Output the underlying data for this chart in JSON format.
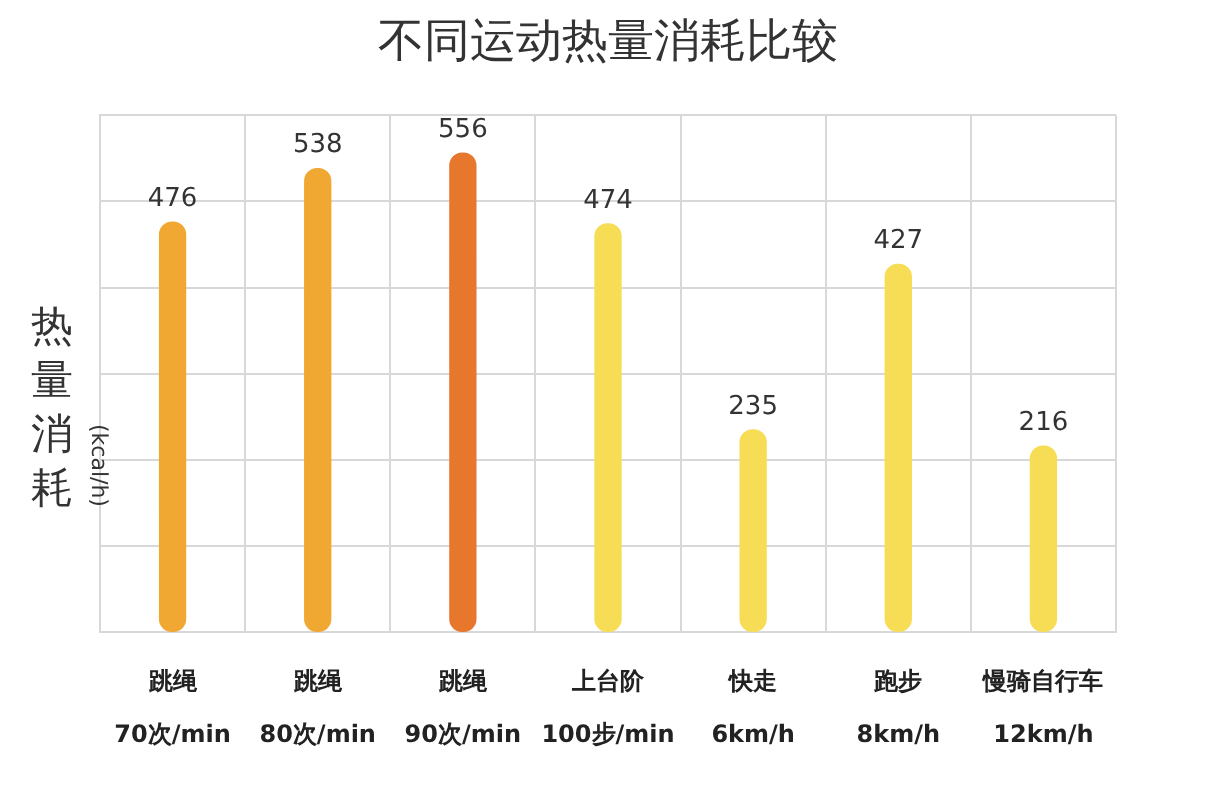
{
  "chart_data": {
    "type": "bar",
    "title": "不同运动热量消耗比较",
    "ylabel": "热量消耗 (kcal/h)",
    "categories": [
      "跳绳\n70次/min",
      "跳绳\n80次/min",
      "跳绳\n90次/min",
      "上台阶\n100步/min",
      "快走\n6km/h",
      "跑步\n8km/h",
      "慢骑自行车\n12km/h"
    ],
    "values": [
      476,
      538,
      556,
      474,
      235,
      427,
      216
    ],
    "colors": [
      "#f0a832",
      "#f0a832",
      "#e8772e",
      "#f7dc55",
      "#f7dc55",
      "#f7dc55",
      "#f7dc55"
    ],
    "ylim": [
      0,
      600
    ],
    "yticks": [
      {
        "value": 0,
        "label": null
      },
      {
        "value": 100,
        "label": null
      },
      {
        "value": 200,
        "label": null
      },
      {
        "value": 300,
        "label": null
      },
      {
        "value": 400,
        "label": null
      },
      {
        "value": 500,
        "label": null
      },
      {
        "value": 600,
        "label": null
      }
    ],
    "tick_labels": "x",
    "grid": true,
    "legend": false,
    "data_labels": true
  }
}
